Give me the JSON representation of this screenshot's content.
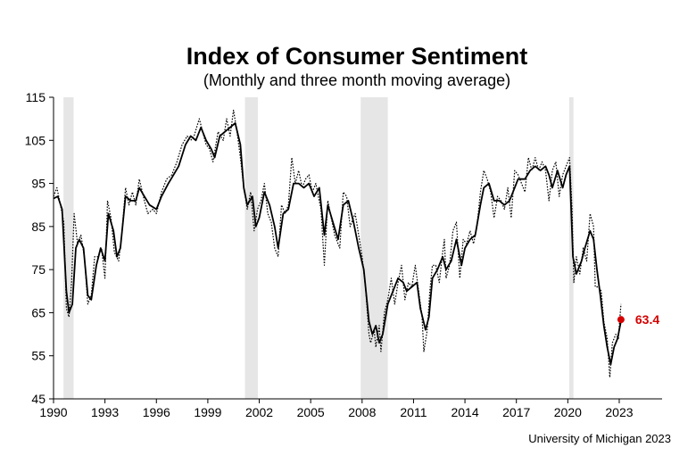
{
  "chart_data": {
    "type": "line",
    "title": "Index of Consumer Sentiment",
    "subtitle": "(Monthly and three month moving average)",
    "source": "University of Michigan 2023",
    "xlim": [
      1990,
      2025.5
    ],
    "ylim": [
      45,
      115
    ],
    "x_ticks": [
      1990,
      1993,
      1996,
      1999,
      2002,
      2005,
      2008,
      2011,
      2014,
      2017,
      2020,
      2023
    ],
    "x_tick_labels": [
      "1990",
      "1993",
      "1996",
      "1999",
      "2002",
      "2005",
      "2008",
      "2011",
      "2014",
      "2017",
      "2020",
      "2023"
    ],
    "y_ticks": [
      45,
      55,
      65,
      75,
      85,
      95,
      105,
      115
    ],
    "y_tick_labels": [
      "45",
      "55",
      "65",
      "75",
      "85",
      "95",
      "105",
      "115"
    ],
    "recessions": [
      {
        "start": 1990.58,
        "end": 1991.17
      },
      {
        "start": 2001.17,
        "end": 2001.92
      },
      {
        "start": 2007.92,
        "end": 2009.5
      },
      {
        "start": 2020.08,
        "end": 2020.33
      }
    ],
    "recession_color": "#e6e6e6",
    "series_color": "#000000",
    "highlight_color": "#d40000",
    "last_point": {
      "x": 2023.1,
      "y": 63.4,
      "label": "63.4"
    },
    "series": [
      {
        "name": "Three month moving average",
        "style": "solid",
        "points": [
          [
            1990.0,
            91.5
          ],
          [
            1990.25,
            92
          ],
          [
            1990.5,
            89
          ],
          [
            1990.75,
            70
          ],
          [
            1990.9,
            65
          ],
          [
            1991.1,
            67
          ],
          [
            1991.3,
            80
          ],
          [
            1991.5,
            82
          ],
          [
            1991.75,
            80
          ],
          [
            1992.0,
            69
          ],
          [
            1992.2,
            68
          ],
          [
            1992.5,
            76
          ],
          [
            1992.75,
            80
          ],
          [
            1993.0,
            77
          ],
          [
            1993.2,
            88
          ],
          [
            1993.5,
            84
          ],
          [
            1993.7,
            78
          ],
          [
            1993.9,
            80
          ],
          [
            1994.2,
            92
          ],
          [
            1994.5,
            91
          ],
          [
            1994.8,
            91
          ],
          [
            1995.0,
            94
          ],
          [
            1995.3,
            92
          ],
          [
            1995.6,
            90
          ],
          [
            1996.0,
            89
          ],
          [
            1996.3,
            92
          ],
          [
            1996.7,
            95
          ],
          [
            1997.0,
            97
          ],
          [
            1997.3,
            99
          ],
          [
            1997.7,
            104
          ],
          [
            1998.0,
            106
          ],
          [
            1998.3,
            105
          ],
          [
            1998.6,
            108
          ],
          [
            1998.9,
            105
          ],
          [
            1999.2,
            103
          ],
          [
            1999.4,
            101
          ],
          [
            1999.7,
            106
          ],
          [
            2000.0,
            107
          ],
          [
            2000.3,
            108
          ],
          [
            2000.6,
            109
          ],
          [
            2000.9,
            104
          ],
          [
            2001.1,
            94
          ],
          [
            2001.3,
            90
          ],
          [
            2001.6,
            92
          ],
          [
            2001.8,
            85
          ],
          [
            2002.0,
            87
          ],
          [
            2002.3,
            93
          ],
          [
            2002.6,
            90
          ],
          [
            2002.9,
            85
          ],
          [
            2003.1,
            80
          ],
          [
            2003.4,
            88
          ],
          [
            2003.7,
            89
          ],
          [
            2004.0,
            95
          ],
          [
            2004.3,
            95
          ],
          [
            2004.6,
            94
          ],
          [
            2004.9,
            95
          ],
          [
            2005.2,
            92
          ],
          [
            2005.5,
            94
          ],
          [
            2005.8,
            83
          ],
          [
            2006.0,
            90
          ],
          [
            2006.3,
            86
          ],
          [
            2006.6,
            82
          ],
          [
            2006.9,
            90
          ],
          [
            2007.2,
            91
          ],
          [
            2007.5,
            86
          ],
          [
            2007.8,
            80
          ],
          [
            2008.1,
            75
          ],
          [
            2008.4,
            63
          ],
          [
            2008.6,
            60
          ],
          [
            2008.8,
            62
          ],
          [
            2009.0,
            58
          ],
          [
            2009.2,
            60
          ],
          [
            2009.5,
            67
          ],
          [
            2009.8,
            70
          ],
          [
            2010.1,
            73
          ],
          [
            2010.4,
            72
          ],
          [
            2010.6,
            70
          ],
          [
            2010.9,
            71
          ],
          [
            2011.2,
            72
          ],
          [
            2011.4,
            66
          ],
          [
            2011.7,
            61
          ],
          [
            2011.9,
            64
          ],
          [
            2012.1,
            73
          ],
          [
            2012.4,
            75
          ],
          [
            2012.7,
            78
          ],
          [
            2012.9,
            75
          ],
          [
            2013.2,
            77
          ],
          [
            2013.5,
            82
          ],
          [
            2013.8,
            76
          ],
          [
            2014.0,
            80
          ],
          [
            2014.3,
            82
          ],
          [
            2014.6,
            83
          ],
          [
            2014.9,
            90
          ],
          [
            2015.1,
            94
          ],
          [
            2015.4,
            95
          ],
          [
            2015.7,
            91
          ],
          [
            2016.0,
            91
          ],
          [
            2016.3,
            90
          ],
          [
            2016.6,
            91
          ],
          [
            2016.9,
            94
          ],
          [
            2017.1,
            96
          ],
          [
            2017.5,
            96
          ],
          [
            2017.8,
            98
          ],
          [
            2018.1,
            99
          ],
          [
            2018.4,
            98
          ],
          [
            2018.7,
            99
          ],
          [
            2018.9,
            97
          ],
          [
            2019.1,
            94
          ],
          [
            2019.4,
            98
          ],
          [
            2019.7,
            94
          ],
          [
            2019.9,
            97
          ],
          [
            2020.1,
            99
          ],
          [
            2020.3,
            78
          ],
          [
            2020.5,
            74
          ],
          [
            2020.8,
            77
          ],
          [
            2021.0,
            80
          ],
          [
            2021.3,
            84
          ],
          [
            2021.5,
            82
          ],
          [
            2021.7,
            75
          ],
          [
            2021.9,
            69
          ],
          [
            2022.1,
            62
          ],
          [
            2022.3,
            57
          ],
          [
            2022.5,
            53
          ],
          [
            2022.7,
            57
          ],
          [
            2022.9,
            59
          ],
          [
            2023.1,
            63
          ]
        ]
      },
      {
        "name": "Monthly",
        "style": "dotted",
        "points": [
          [
            1990.0,
            92
          ],
          [
            1990.2,
            94
          ],
          [
            1990.4,
            90
          ],
          [
            1990.6,
            86
          ],
          [
            1990.75,
            66
          ],
          [
            1990.9,
            64
          ],
          [
            1991.05,
            72
          ],
          [
            1991.2,
            88
          ],
          [
            1991.4,
            81
          ],
          [
            1991.6,
            83
          ],
          [
            1991.8,
            78
          ],
          [
            1992.0,
            67
          ],
          [
            1992.2,
            69
          ],
          [
            1992.4,
            78
          ],
          [
            1992.6,
            78
          ],
          [
            1992.8,
            80
          ],
          [
            1993.0,
            73
          ],
          [
            1993.15,
            91
          ],
          [
            1993.35,
            87
          ],
          [
            1993.55,
            79
          ],
          [
            1993.8,
            77
          ],
          [
            1994.0,
            84
          ],
          [
            1994.2,
            94
          ],
          [
            1994.4,
            90
          ],
          [
            1994.6,
            93
          ],
          [
            1994.8,
            90
          ],
          [
            1995.0,
            96
          ],
          [
            1995.3,
            91
          ],
          [
            1995.5,
            88
          ],
          [
            1995.8,
            89
          ],
          [
            1996.0,
            88
          ],
          [
            1996.3,
            93
          ],
          [
            1996.6,
            96
          ],
          [
            1996.9,
            97
          ],
          [
            1997.2,
            100
          ],
          [
            1997.5,
            104
          ],
          [
            1997.8,
            106
          ],
          [
            1998.0,
            105
          ],
          [
            1998.2,
            106
          ],
          [
            1998.5,
            110
          ],
          [
            1998.7,
            107
          ],
          [
            1998.9,
            104
          ],
          [
            1999.1,
            103
          ],
          [
            1999.3,
            100
          ],
          [
            1999.6,
            107
          ],
          [
            1999.9,
            105
          ],
          [
            2000.1,
            110
          ],
          [
            2000.3,
            106
          ],
          [
            2000.5,
            112
          ],
          [
            2000.7,
            107
          ],
          [
            2000.9,
            101
          ],
          [
            2001.1,
            94
          ],
          [
            2001.3,
            89
          ],
          [
            2001.5,
            93
          ],
          [
            2001.7,
            84
          ],
          [
            2001.9,
            89
          ],
          [
            2002.1,
            91
          ],
          [
            2002.3,
            95
          ],
          [
            2002.5,
            88
          ],
          [
            2002.7,
            86
          ],
          [
            2002.9,
            80
          ],
          [
            2003.1,
            78
          ],
          [
            2003.3,
            90
          ],
          [
            2003.5,
            88
          ],
          [
            2003.7,
            90
          ],
          [
            2003.9,
            101
          ],
          [
            2004.1,
            95
          ],
          [
            2004.3,
            98
          ],
          [
            2004.5,
            94
          ],
          [
            2004.7,
            96
          ],
          [
            2004.9,
            97
          ],
          [
            2005.1,
            93
          ],
          [
            2005.3,
            95
          ],
          [
            2005.6,
            89
          ],
          [
            2005.8,
            76
          ],
          [
            2006.0,
            91
          ],
          [
            2006.2,
            87
          ],
          [
            2006.4,
            83
          ],
          [
            2006.7,
            80
          ],
          [
            2006.9,
            93
          ],
          [
            2007.1,
            92
          ],
          [
            2007.3,
            85
          ],
          [
            2007.6,
            88
          ],
          [
            2007.8,
            83
          ],
          [
            2008.0,
            78
          ],
          [
            2008.2,
            71
          ],
          [
            2008.4,
            60
          ],
          [
            2008.5,
            58
          ],
          [
            2008.7,
            61
          ],
          [
            2008.8,
            57
          ],
          [
            2009.0,
            62
          ],
          [
            2009.1,
            56
          ],
          [
            2009.3,
            65
          ],
          [
            2009.5,
            68
          ],
          [
            2009.7,
            73
          ],
          [
            2009.9,
            67
          ],
          [
            2010.1,
            72
          ],
          [
            2010.3,
            76
          ],
          [
            2010.5,
            68
          ],
          [
            2010.7,
            72
          ],
          [
            2010.9,
            71
          ],
          [
            2011.1,
            76
          ],
          [
            2011.3,
            70
          ],
          [
            2011.5,
            64
          ],
          [
            2011.6,
            56
          ],
          [
            2011.8,
            61
          ],
          [
            2011.95,
            70
          ],
          [
            2012.1,
            76
          ],
          [
            2012.3,
            76
          ],
          [
            2012.5,
            72
          ],
          [
            2012.7,
            79
          ],
          [
            2012.8,
            82
          ],
          [
            2012.9,
            73
          ],
          [
            2013.1,
            76
          ],
          [
            2013.3,
            84
          ],
          [
            2013.5,
            86
          ],
          [
            2013.7,
            73
          ],
          [
            2013.9,
            82
          ],
          [
            2014.1,
            81
          ],
          [
            2014.3,
            84
          ],
          [
            2014.5,
            81
          ],
          [
            2014.7,
            85
          ],
          [
            2014.9,
            93
          ],
          [
            2015.1,
            98
          ],
          [
            2015.3,
            96
          ],
          [
            2015.5,
            93
          ],
          [
            2015.7,
            87
          ],
          [
            2015.9,
            92
          ],
          [
            2016.1,
            91
          ],
          [
            2016.3,
            89
          ],
          [
            2016.5,
            94
          ],
          [
            2016.7,
            87
          ],
          [
            2016.9,
            98
          ],
          [
            2017.1,
            97
          ],
          [
            2017.3,
            95
          ],
          [
            2017.5,
            93
          ],
          [
            2017.7,
            101
          ],
          [
            2017.9,
            98
          ],
          [
            2018.1,
            101
          ],
          [
            2018.3,
            98
          ],
          [
            2018.5,
            100
          ],
          [
            2018.7,
            98
          ],
          [
            2018.9,
            91
          ],
          [
            2019.1,
            98
          ],
          [
            2019.3,
            100
          ],
          [
            2019.5,
            92
          ],
          [
            2019.7,
            97
          ],
          [
            2019.9,
            99
          ],
          [
            2020.1,
            101
          ],
          [
            2020.25,
            89
          ],
          [
            2020.35,
            72
          ],
          [
            2020.5,
            78
          ],
          [
            2020.7,
            74
          ],
          [
            2020.9,
            80
          ],
          [
            2021.1,
            77
          ],
          [
            2021.3,
            88
          ],
          [
            2021.5,
            85
          ],
          [
            2021.6,
            71
          ],
          [
            2021.8,
            71
          ],
          [
            2021.95,
            70
          ],
          [
            2022.1,
            63
          ],
          [
            2022.3,
            59
          ],
          [
            2022.45,
            50
          ],
          [
            2022.6,
            58
          ],
          [
            2022.8,
            60
          ],
          [
            2022.95,
            59
          ],
          [
            2023.1,
            67
          ]
        ]
      }
    ]
  }
}
